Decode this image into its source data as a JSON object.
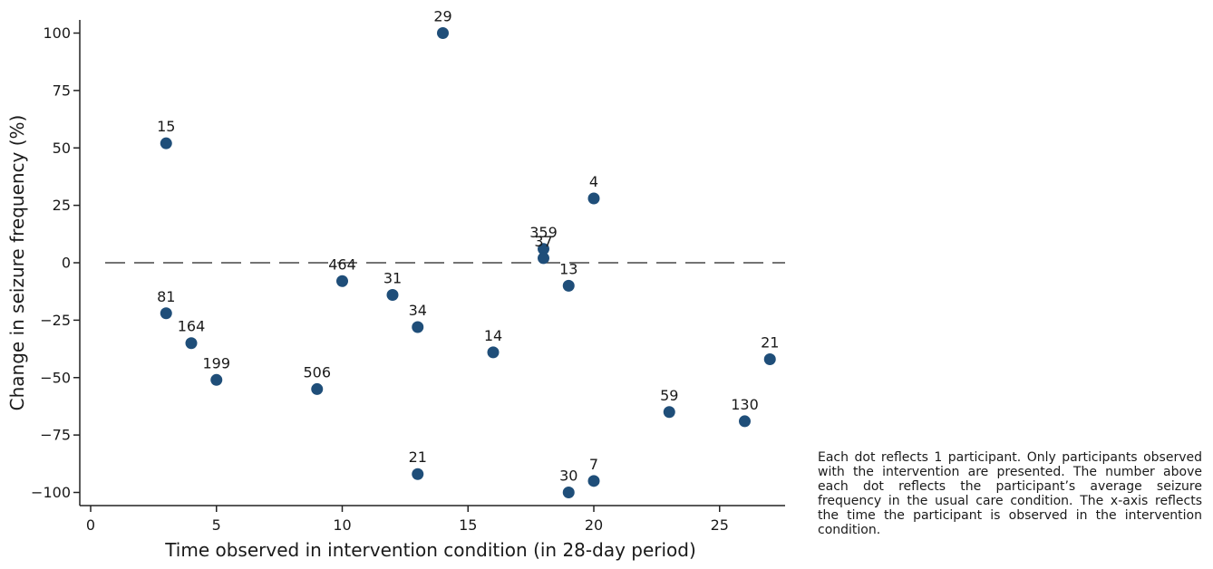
{
  "chart_data": {
    "type": "scatter",
    "xlabel": "Time observed in intervention condition (in 28-day period)",
    "ylabel": "Change in seizure frequency (%)",
    "xlim": [
      0,
      27
    ],
    "ylim": [
      -100,
      100
    ],
    "xticks": [
      0,
      5,
      10,
      15,
      20,
      25
    ],
    "yticks": [
      100,
      75,
      50,
      25,
      0,
      -25,
      -50,
      -75,
      -100
    ],
    "reference_line": {
      "y": 0,
      "style": "dashed"
    },
    "marker_color": "#1f4e79",
    "points": [
      {
        "x": 3,
        "y": 52,
        "label": "15"
      },
      {
        "x": 14,
        "y": 100,
        "label": "29"
      },
      {
        "x": 20,
        "y": 28,
        "label": "4"
      },
      {
        "x": 18,
        "y": 6,
        "label": "359"
      },
      {
        "x": 18,
        "y": 2,
        "label": "37"
      },
      {
        "x": 10,
        "y": -8,
        "label": "464"
      },
      {
        "x": 12,
        "y": -14,
        "label": "31"
      },
      {
        "x": 19,
        "y": -10,
        "label": "13"
      },
      {
        "x": 3,
        "y": -22,
        "label": "81"
      },
      {
        "x": 13,
        "y": -28,
        "label": "34"
      },
      {
        "x": 4,
        "y": -35,
        "label": "164"
      },
      {
        "x": 16,
        "y": -39,
        "label": "14"
      },
      {
        "x": 27,
        "y": -42,
        "label": "21"
      },
      {
        "x": 5,
        "y": -51,
        "label": "199"
      },
      {
        "x": 9,
        "y": -55,
        "label": "506"
      },
      {
        "x": 23,
        "y": -65,
        "label": "59"
      },
      {
        "x": 26,
        "y": -69,
        "label": "130"
      },
      {
        "x": 13,
        "y": -92,
        "label": "21"
      },
      {
        "x": 20,
        "y": -95,
        "label": "7"
      },
      {
        "x": 19,
        "y": -100,
        "label": "30"
      }
    ]
  },
  "caption": "Each dot reflects 1 participant. Only participants observed with the intervention are presented. The number above each dot reflects the participant’s average seizure frequency in the usual care condition. The x-axis reflects the time the participant is observed in the intervention condition."
}
